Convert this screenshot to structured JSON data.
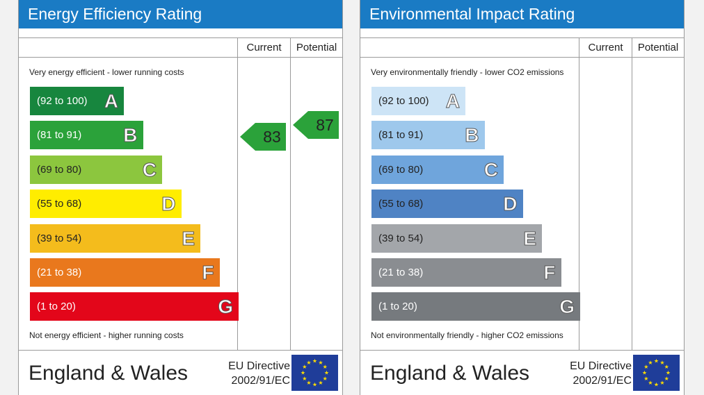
{
  "chart_data": [
    {
      "type": "bar",
      "title": "Energy Efficiency Rating",
      "columns": [
        "Current",
        "Potential"
      ],
      "top_note": "Very energy efficient - lower running costs",
      "bottom_note": "Not energy efficient - higher running costs",
      "bands": [
        {
          "letter": "A",
          "range": "(92 to 100)",
          "color": "#17863e"
        },
        {
          "letter": "B",
          "range": "(81 to 91)",
          "color": "#2ba23a"
        },
        {
          "letter": "C",
          "range": "(69 to 80)",
          "color": "#8cc63e"
        },
        {
          "letter": "D",
          "range": "(55 to 68)",
          "color": "#ffed00"
        },
        {
          "letter": "E",
          "range": "(39 to 54)",
          "color": "#f4bc1c"
        },
        {
          "letter": "F",
          "range": "(21 to 38)",
          "color": "#e9781d"
        },
        {
          "letter": "G",
          "range": "(1 to 20)",
          "color": "#e3061a"
        }
      ],
      "current": {
        "value": 83,
        "band": "B",
        "color": "#2ba23a"
      },
      "potential": {
        "value": 87,
        "band": "B",
        "color": "#2ba23a"
      },
      "footer": {
        "region": "England & Wales",
        "directive_line1": "EU Directive",
        "directive_line2": "2002/91/EC"
      }
    },
    {
      "type": "bar",
      "title": "Environmental Impact Rating",
      "columns": [
        "Current",
        "Potential"
      ],
      "top_note": "Very environmentally friendly - lower CO2 emissions",
      "bottom_note": "Not environmentally friendly - higher CO2 emissions",
      "bands": [
        {
          "letter": "A",
          "range": "(92 to 100)",
          "color": "#cde4f6"
        },
        {
          "letter": "B",
          "range": "(81 to 91)",
          "color": "#9ec8ec"
        },
        {
          "letter": "C",
          "range": "(69 to 80)",
          "color": "#6fa5dc"
        },
        {
          "letter": "D",
          "range": "(55 to 68)",
          "color": "#4f83c4"
        },
        {
          "letter": "E",
          "range": "(39 to 54)",
          "color": "#a3a6aa"
        },
        {
          "letter": "F",
          "range": "(21 to 38)",
          "color": "#8a8d91"
        },
        {
          "letter": "G",
          "range": "(1 to 20)",
          "color": "#767a7e"
        }
      ],
      "current": null,
      "potential": null,
      "footer": {
        "region": "England & Wales",
        "directive_line1": "EU Directive",
        "directive_line2": "2002/91/EC"
      }
    }
  ]
}
